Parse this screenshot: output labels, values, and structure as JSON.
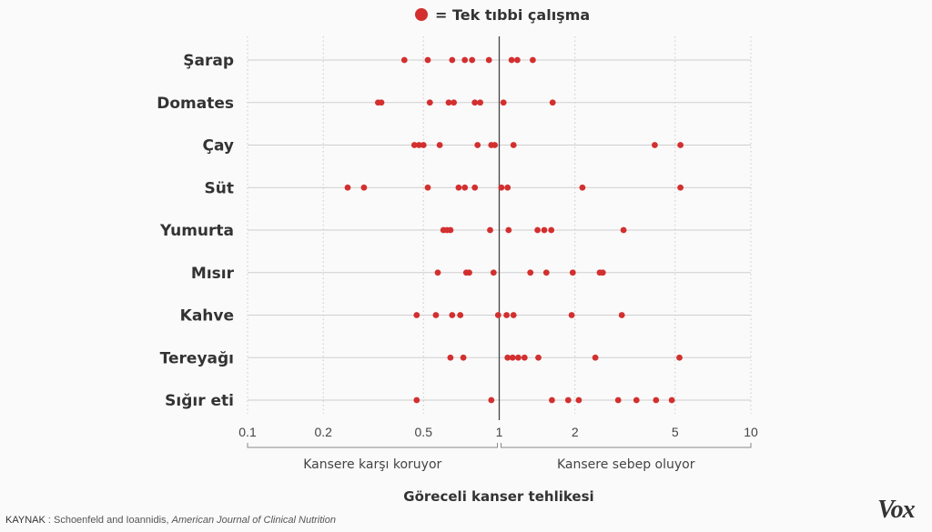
{
  "legend": {
    "marker_color": "#d32f2f",
    "label": "= Tek tıbbi çalışma"
  },
  "source": {
    "prefix": "KAYNAK",
    "sep": " : ",
    "authors": "Schoenfeld and Ioannidis, ",
    "journal": "American Journal of Clinical Nutrition"
  },
  "brand": "Vox",
  "chart_data": {
    "type": "scatter",
    "title": "",
    "xlabel": "Göreceli kanser tehlikesi",
    "x_scale": "log",
    "xlim": [
      0.1,
      10
    ],
    "x_ticks": [
      0.1,
      0.2,
      0.5,
      1,
      2,
      5,
      10
    ],
    "x_tick_labels": [
      "0.1",
      "0.2",
      "0.5",
      "1",
      "2",
      "5",
      "10"
    ],
    "reference_line": 1,
    "regions": [
      {
        "label": "Kansere karşı koruyor",
        "from": 0.1,
        "to": 1
      },
      {
        "label": "Kansere sebep oluyor",
        "from": 1,
        "to": 10
      }
    ],
    "point_color": "#d32f2f",
    "series": [
      {
        "category": "Şarap",
        "x": [
          0.42,
          0.52,
          0.65,
          0.73,
          0.78,
          0.91,
          1.12,
          1.18,
          1.36
        ]
      },
      {
        "category": "Domates",
        "x": [
          0.33,
          0.34,
          0.53,
          0.63,
          0.66,
          0.8,
          0.84,
          1.04,
          1.63
        ]
      },
      {
        "category": "Çay",
        "x": [
          0.46,
          0.48,
          0.5,
          0.58,
          0.82,
          0.93,
          0.96,
          1.14,
          4.15,
          5.25
        ]
      },
      {
        "category": "Süt",
        "x": [
          0.25,
          0.29,
          0.52,
          0.69,
          0.73,
          0.8,
          1.02,
          1.08,
          2.14,
          5.25
        ]
      },
      {
        "category": "Yumurta",
        "x": [
          0.6,
          0.62,
          0.64,
          0.92,
          1.09,
          1.42,
          1.51,
          1.61,
          3.12
        ]
      },
      {
        "category": "Mısır",
        "x": [
          0.57,
          0.74,
          0.76,
          0.95,
          1.33,
          1.54,
          1.96,
          2.51,
          2.58
        ]
      },
      {
        "category": "Kahve",
        "x": [
          0.47,
          0.56,
          0.65,
          0.7,
          0.99,
          1.07,
          1.14,
          1.94,
          3.07
        ]
      },
      {
        "category": "Tereyağı",
        "x": [
          0.64,
          0.72,
          1.08,
          1.13,
          1.19,
          1.26,
          1.43,
          2.41,
          5.2
        ]
      },
      {
        "category": "Sığır eti",
        "x": [
          0.47,
          0.93,
          1.62,
          1.88,
          2.07,
          2.97,
          3.51,
          4.2,
          4.85
        ]
      }
    ]
  }
}
